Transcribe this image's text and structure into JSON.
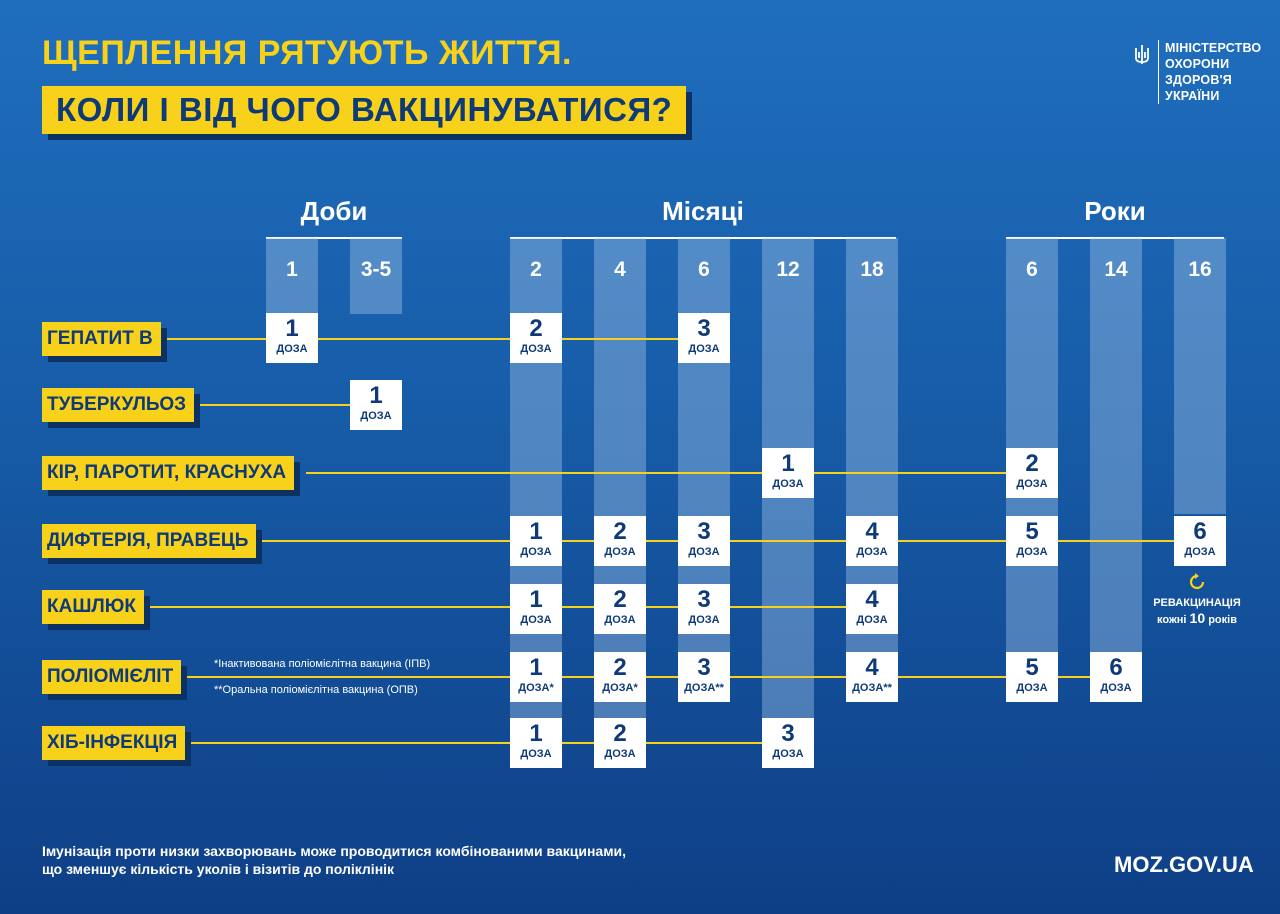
{
  "header": {
    "title_line1": "ЩЕПЛЕННЯ РЯТУЮТЬ ЖИТТЯ.",
    "title_line2": "КОЛИ І ВІД ЧОГО ВАКЦИНУВАТИСЯ?"
  },
  "logo": {
    "lines": [
      "МІНІСТЕРСТВО",
      "ОХОРОНИ",
      "ЗДОРОВ'Я",
      "УКРАЇНИ"
    ],
    "icon": "trident-icon"
  },
  "periods": {
    "days": "Доби",
    "months": "Місяці",
    "years": "Роки"
  },
  "columns": [
    "1",
    "3-5",
    "2",
    "4",
    "6",
    "12",
    "18",
    "6",
    "14",
    "16"
  ],
  "diseases": [
    "ГЕПАТИТ В",
    "ТУБЕРКУЛЬОЗ",
    "КІР, ПАРОТИТ, КРАСНУХА",
    "ДИФТЕРІЯ, ПРАВЕЦЬ",
    "КАШЛЮК",
    "ПОЛІОМІЄЛІТ",
    "ХІБ-ІНФЕКЦІЯ"
  ],
  "doses": {
    "hepb": [
      {
        "n": "1",
        "u": "ДОЗА"
      },
      {
        "n": "2",
        "u": "ДОЗА"
      },
      {
        "n": "3",
        "u": "ДОЗА"
      }
    ],
    "tb": [
      {
        "n": "1",
        "u": "ДОЗА"
      }
    ],
    "mmr": [
      {
        "n": "1",
        "u": "ДОЗА"
      },
      {
        "n": "2",
        "u": "ДОЗА"
      }
    ],
    "dt": [
      {
        "n": "1",
        "u": "ДОЗА"
      },
      {
        "n": "2",
        "u": "ДОЗА"
      },
      {
        "n": "3",
        "u": "ДОЗА"
      },
      {
        "n": "4",
        "u": "ДОЗА"
      },
      {
        "n": "5",
        "u": "ДОЗА"
      },
      {
        "n": "6",
        "u": "ДОЗА"
      }
    ],
    "pert": [
      {
        "n": "1",
        "u": "ДОЗА"
      },
      {
        "n": "2",
        "u": "ДОЗА"
      },
      {
        "n": "3",
        "u": "ДОЗА"
      },
      {
        "n": "4",
        "u": "ДОЗА"
      }
    ],
    "polio": [
      {
        "n": "1",
        "u": "ДОЗА*"
      },
      {
        "n": "2",
        "u": "ДОЗА*"
      },
      {
        "n": "3",
        "u": "ДОЗА**"
      },
      {
        "n": "4",
        "u": "ДОЗА**"
      },
      {
        "n": "5",
        "u": "ДОЗА"
      },
      {
        "n": "6",
        "u": "ДОЗА"
      }
    ],
    "hib": [
      {
        "n": "1",
        "u": "ДОЗА"
      },
      {
        "n": "2",
        "u": "ДОЗА"
      },
      {
        "n": "3",
        "u": "ДОЗА"
      }
    ]
  },
  "polio_notes": {
    "ipv": "*Інактивована поліомієлітна вакцина (ІПВ)",
    "opv": "**Оральна поліомієлітна вакцина (ОПВ)"
  },
  "revaccination": {
    "line1": "РЕВАКЦИНАЦІЯ",
    "line2_prefix": "кожні",
    "line2_num": "10",
    "line2_suffix": "років",
    "icon": "refresh-icon"
  },
  "footer": {
    "note_line1": "Імунізація проти низки захворювань може проводитися комбінованими вакцинами,",
    "note_line2": "що зменшує кількість уколів і візитів до поліклінік",
    "site": "MOZ.GOV.UA"
  }
}
